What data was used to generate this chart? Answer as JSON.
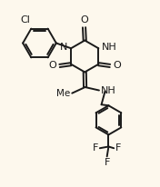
{
  "background_color": "#fdf8ed",
  "line_color": "#1a1a1a",
  "line_width": 1.4,
  "font_size": 7.5,
  "figsize": [
    1.76,
    2.06
  ],
  "dpi": 100,
  "xlim": [
    0.0,
    1.0
  ],
  "ylim": [
    0.0,
    1.0
  ]
}
